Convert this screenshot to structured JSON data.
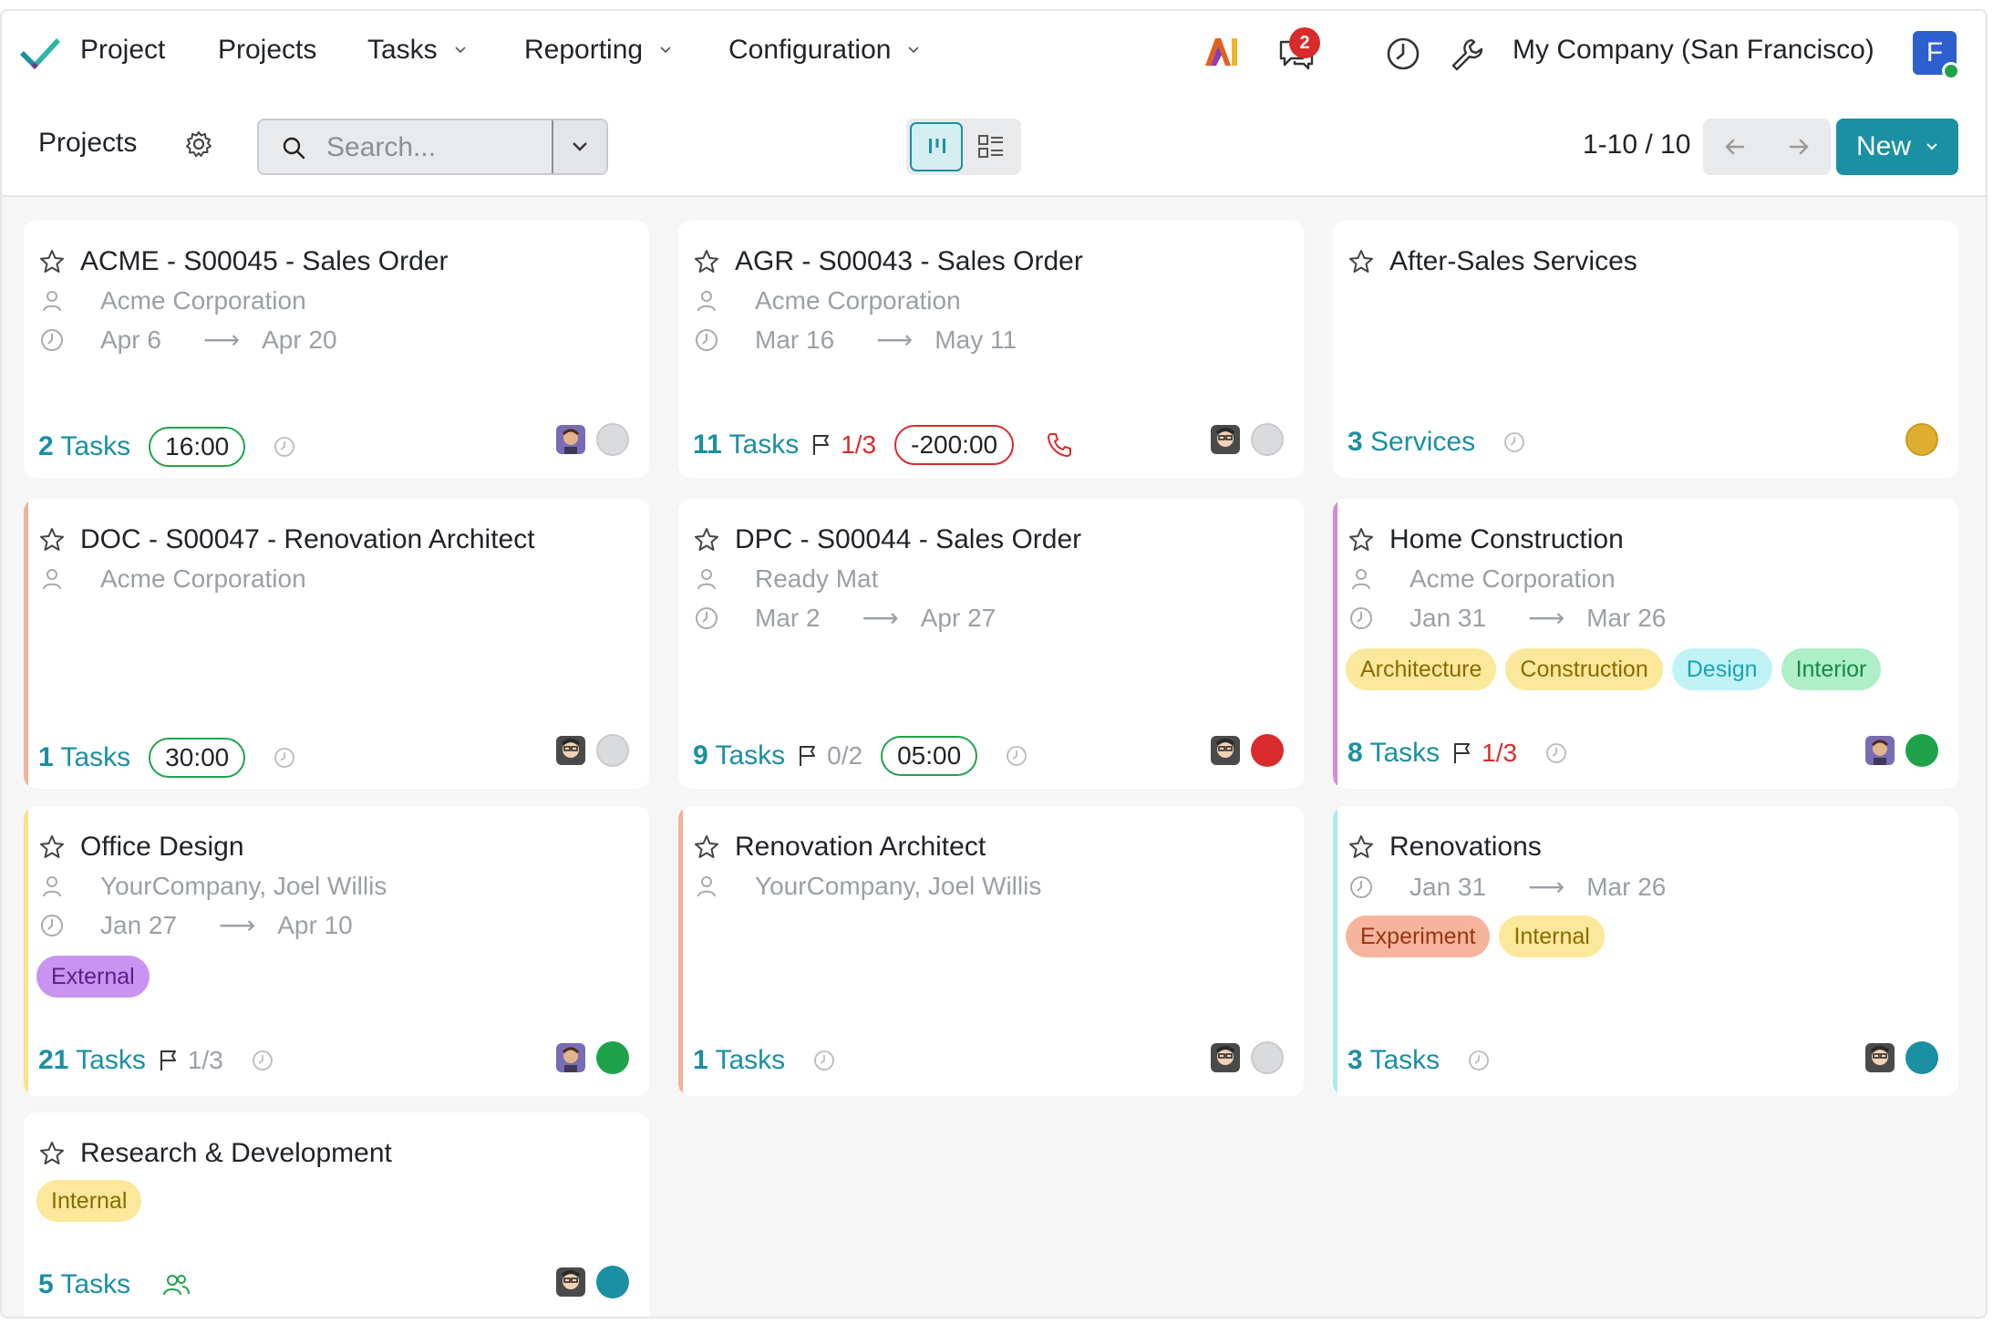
{
  "nav": {
    "app_name": "Project",
    "menu": [
      {
        "label": "Projects"
      },
      {
        "label": "Tasks"
      },
      {
        "label": "Reporting"
      },
      {
        "label": "Configuration"
      }
    ],
    "messages_count": "2",
    "company": "My Company (San Francisco)",
    "user_initial": "F"
  },
  "control": {
    "breadcrumb": "Projects",
    "search_placeholder": "Search...",
    "pager": "1-10 / 10",
    "new_label": "New"
  },
  "colors": {
    "accent": "#1b8fa3",
    "danger": "#d92b2b",
    "success": "#1fa34a"
  },
  "cards": [
    {
      "title": "ACME - S00045 - Sales Order",
      "customer": "Acme Corporation",
      "date_start": "Apr 6",
      "date_end": "Apr 20",
      "tasks_count": "2",
      "tasks_label": "Tasks",
      "time": "16:00",
      "status_color": "#dadbdd",
      "accent": ""
    },
    {
      "title": "AGR - S00043 - Sales Order",
      "customer": "Acme Corporation",
      "date_start": "Mar 16",
      "date_end": "May 11",
      "tasks_count": "11",
      "tasks_label": "Tasks",
      "milestone": "1/3",
      "time": "-200:00",
      "status_color": "#dadbdd",
      "accent": ""
    },
    {
      "title": "After-Sales Services",
      "tasks_count": "3",
      "tasks_label": "Services",
      "status_color": "#dfae2f",
      "accent": ""
    },
    {
      "title": "DOC - S00047 - Renovation Architect",
      "customer": "Acme Corporation",
      "tasks_count": "1",
      "tasks_label": "Tasks",
      "time": "30:00",
      "status_color": "#dadbdd",
      "accent": "#f3b09a"
    },
    {
      "title": "DPC - S00044 - Sales Order",
      "customer": "Ready Mat",
      "date_start": "Mar 2",
      "date_end": "Apr 27",
      "tasks_count": "9",
      "tasks_label": "Tasks",
      "milestone": "0/2",
      "time": "05:00",
      "status_color": "#d92b2b",
      "accent": ""
    },
    {
      "title": "Home Construction",
      "customer": "Acme Corporation",
      "date_start": "Jan 31",
      "date_end": "Mar 26",
      "tags": [
        {
          "label": "Architecture"
        },
        {
          "label": "Construction"
        },
        {
          "label": "Design"
        },
        {
          "label": "Interior"
        }
      ],
      "tasks_count": "8",
      "tasks_label": "Tasks",
      "milestone": "1/3",
      "status_color": "#1fa34a",
      "accent": "#d48ad9"
    },
    {
      "title": "Office Design",
      "customer": "YourCompany, Joel Willis",
      "date_start": "Jan 27",
      "date_end": "Apr 10",
      "tags": [
        {
          "label": "External"
        }
      ],
      "tasks_count": "21",
      "tasks_label": "Tasks",
      "milestone": "1/3",
      "status_color": "#1fa34a",
      "accent": "#f7e38a"
    },
    {
      "title": "Renovation Architect",
      "customer": "YourCompany, Joel Willis",
      "tasks_count": "1",
      "tasks_label": "Tasks",
      "status_color": "#dadbdd",
      "accent": "#f3b09a"
    },
    {
      "title": "Renovations",
      "date_start": "Jan 31",
      "date_end": "Mar 26",
      "tags": [
        {
          "label": "Experiment"
        },
        {
          "label": "Internal"
        }
      ],
      "tasks_count": "3",
      "tasks_label": "Tasks",
      "status_color": "#1b8fa3",
      "accent": "#a8ecf0"
    },
    {
      "title": "Research & Development",
      "tags": [
        {
          "label": "Internal"
        }
      ],
      "tasks_count": "5",
      "tasks_label": "Tasks",
      "status_color": "#1b8fa3",
      "accent": ""
    }
  ]
}
